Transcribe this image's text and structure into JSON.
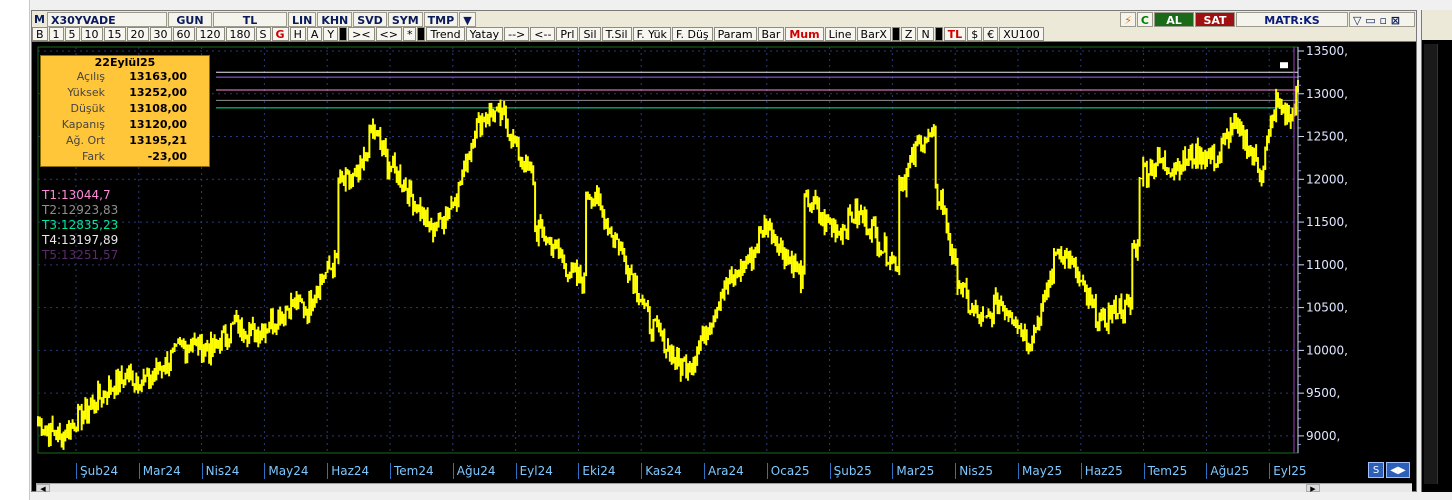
{
  "titlebar": {
    "logo": "M",
    "symbol": "X30YVADE",
    "period": "GUN",
    "currency": "TL",
    "buttons": [
      "LIN",
      "KHN",
      "SVD",
      "SYM",
      "TMP"
    ],
    "brand": "MATR:KS",
    "al": "AL",
    "sat": "SAT",
    "c": "C"
  },
  "toolbar": {
    "buttons": [
      "B",
      "1",
      "5",
      "10",
      "15",
      "20",
      "30",
      "60",
      "120",
      "180",
      "S",
      "G",
      "H",
      "A",
      "Y",
      "><",
      "<>",
      "*",
      "Trend",
      "Yatay",
      "-->",
      "<--",
      "Prl",
      "Sil",
      "T.Sil",
      "F. Yük",
      "F. Düş",
      "Param",
      "Bar",
      "Mum",
      "Line",
      "BarX",
      "Z",
      "N",
      "TL",
      "$",
      "€",
      "XU100"
    ]
  },
  "infobox": {
    "date": "22Eylül25",
    "rows": [
      {
        "k": "Açılış",
        "v": "13163,00"
      },
      {
        "k": "Yüksek",
        "v": "13252,00"
      },
      {
        "k": "Düşük",
        "v": "13108,00"
      },
      {
        "k": "Kapanış",
        "v": "13120,00"
      },
      {
        "k": "Ağ. Ort",
        "v": "13195,21"
      },
      {
        "k": "Fark",
        "v": "-23,00"
      }
    ]
  },
  "trendlines": [
    {
      "label": "T1:13044,7",
      "color": "#ff8ad8"
    },
    {
      "label": "T2:12923,83",
      "color": "#909090"
    },
    {
      "label": "T3:12835,23",
      "color": "#00e8a0"
    },
    {
      "label": "T4:13197,89",
      "color": "#e8e8e8"
    },
    {
      "label": "T5:13251,57",
      "color": "#5a2a6a"
    }
  ],
  "chart_data": {
    "type": "bar",
    "ylim": [
      8800,
      13500
    ],
    "ytick_labels": [
      "13500,",
      "13000,",
      "12500,",
      "12000,",
      "11500,",
      "11000,",
      "10500,",
      "10000,",
      "9500,",
      "9000,"
    ],
    "yticks": [
      13500,
      13000,
      12500,
      12000,
      11500,
      11000,
      10500,
      10000,
      9500,
      9000
    ],
    "x_labels": [
      "Şub24",
      "Mar24",
      "Nis24",
      "May24",
      "Haz24",
      "Tem24",
      "Ağu24",
      "Eyl24",
      "Eki24",
      "Kas24",
      "Ara24",
      "Oca25",
      "Şub25",
      "Mar25",
      "Nis25",
      "May25",
      "Haz25",
      "Tem25",
      "Ağu25",
      "Eyl25"
    ],
    "series_color": "#ffff00",
    "hlines": [
      13252,
      13195,
      13044,
      12923,
      12835
    ],
    "hline_colors": [
      "#e8e8e8",
      "#a060ff",
      "#ff8ad8",
      "#909090",
      "#00e8a0"
    ],
    "path": [
      [
        0,
        9150
      ],
      [
        3,
        8980
      ],
      [
        6,
        9250
      ],
      [
        9,
        9500
      ],
      [
        12,
        9700
      ],
      [
        15,
        9650
      ],
      [
        18,
        9900
      ],
      [
        21,
        10100
      ],
      [
        24,
        10000
      ],
      [
        27,
        10300
      ],
      [
        30,
        10200
      ],
      [
        33,
        10400
      ],
      [
        35,
        10550
      ],
      [
        37,
        10500
      ],
      [
        39,
        10850
      ],
      [
        41,
        11050
      ],
      [
        42,
        11950
      ],
      [
        44,
        12000
      ],
      [
        46,
        12600
      ],
      [
        48,
        12200
      ],
      [
        50,
        12000
      ],
      [
        52,
        11700
      ],
      [
        54,
        11400
      ],
      [
        56,
        11600
      ],
      [
        58,
        11950
      ],
      [
        60,
        12600
      ],
      [
        62,
        12800
      ],
      [
        64,
        12700
      ],
      [
        66,
        12300
      ],
      [
        68,
        12000
      ],
      [
        69,
        11400
      ],
      [
        71,
        11200
      ],
      [
        73,
        10900
      ],
      [
        75,
        10800
      ],
      [
        76,
        11850
      ],
      [
        78,
        11500
      ],
      [
        80,
        11200
      ],
      [
        82,
        10800
      ],
      [
        84,
        10300
      ],
      [
        86,
        10100
      ],
      [
        88,
        9800
      ],
      [
        90,
        9900
      ],
      [
        92,
        10300
      ],
      [
        94,
        10700
      ],
      [
        96,
        10900
      ],
      [
        98,
        11100
      ],
      [
        100,
        11500
      ],
      [
        102,
        11200
      ],
      [
        104,
        11000
      ],
      [
        105,
        10800
      ],
      [
        106,
        11750
      ],
      [
        108,
        11500
      ],
      [
        110,
        11400
      ],
      [
        112,
        11600
      ],
      [
        114,
        11500
      ],
      [
        116,
        11200
      ],
      [
        118,
        11000
      ],
      [
        119,
        12000
      ],
      [
        121,
        12450
      ],
      [
        123,
        12500
      ],
      [
        124,
        11800
      ],
      [
        126,
        10900
      ],
      [
        128,
        10500
      ],
      [
        130,
        10300
      ],
      [
        132,
        10600
      ],
      [
        134,
        10400
      ],
      [
        136,
        10100
      ],
      [
        138,
        10500
      ],
      [
        140,
        11200
      ],
      [
        142,
        11000
      ],
      [
        144,
        10600
      ],
      [
        146,
        10300
      ],
      [
        148,
        10500
      ],
      [
        150,
        10500
      ],
      [
        151,
        11200
      ],
      [
        152,
        12100
      ],
      [
        154,
        12200
      ],
      [
        156,
        12150
      ],
      [
        158,
        12250
      ],
      [
        160,
        12300
      ],
      [
        162,
        12250
      ],
      [
        164,
        12650
      ],
      [
        166,
        12400
      ],
      [
        168,
        12100
      ],
      [
        170,
        12900
      ],
      [
        172,
        12700
      ],
      [
        173,
        13100
      ]
    ],
    "last_x": 173
  },
  "navbtns": [
    "S",
    "◀▶"
  ]
}
